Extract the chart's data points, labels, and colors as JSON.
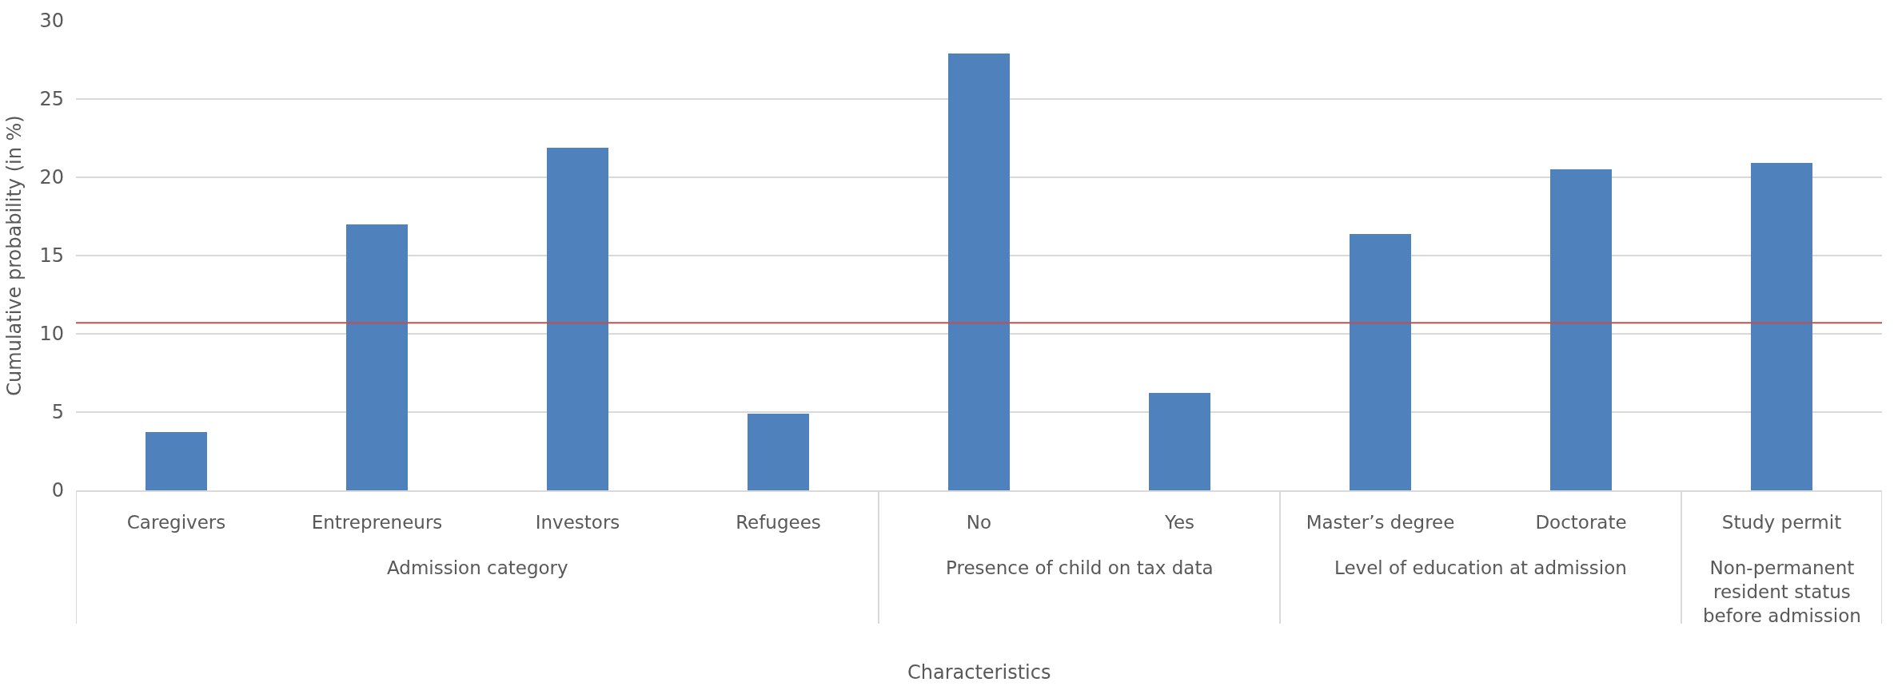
{
  "chart_data": {
    "type": "bar",
    "ylabel": "Cumulative probability (in %)",
    "annotations": [
      "Admission category",
      "Presence of child on tax data",
      "Level of education at admission",
      "Non-permanent resident status before admission",
      "Characteristics"
    ],
    "categories": [
      "Caregivers",
      "Entrepreneurs",
      "Investors",
      "Refugees",
      "No",
      "Yes",
      "Master’s degree",
      "Doctorate",
      "Study permit"
    ],
    "values": [
      3.7,
      17.0,
      21.9,
      4.9,
      27.9,
      6.2,
      16.4,
      20.5,
      20.9
    ],
    "color": "#4f81bd",
    "ylim": [
      0,
      30
    ],
    "yticks": [
      0,
      5,
      10,
      15,
      20,
      25,
      30
    ],
    "grid": "y",
    "legend": false,
    "ref_lines": [
      {
        "axis": "y",
        "value": 10.7,
        "color": "#c0504d"
      }
    ]
  }
}
